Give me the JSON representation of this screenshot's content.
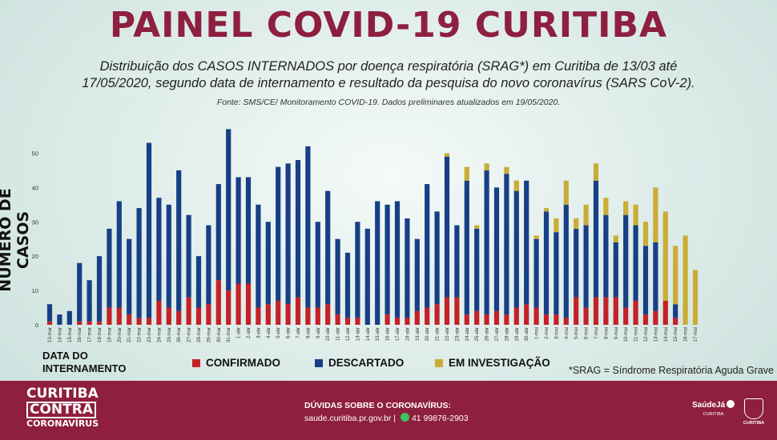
{
  "header": {
    "title": "PAINEL COVID-19 CURITIBA",
    "subtitle_line1": "Distribuição dos CASOS INTERNADOS por doença respiratória (SRAG*) em Curitiba de 13/03 até",
    "subtitle_line2": "17/05/2020, segundo data de internamento e resultado da pesquisa do novo coronavírus (SARS CoV-2).",
    "source": "Fonte: SMS/CE/ Monitoramento COVID-19. Dados preliminares atualizados em 19/05/2020."
  },
  "axis": {
    "ylabel": "NÚMERO DE CASOS",
    "xcaption_line1": "DATA DO",
    "xcaption_line2": "INTERNAMENTO"
  },
  "legend": {
    "confirmado": "CONFIRMADO",
    "descartado": "DESCARTADO",
    "investigacao": "EM INVESTIGAÇÃO"
  },
  "footnote": "*SRAG = Síndrome Respiratória Aguda Grave",
  "footer": {
    "brand_line1": "CURITIBA",
    "brand_line2": "CONTRA",
    "brand_line3": "CORONAVÍRUS",
    "doubts_title": "DÚVIDAS SOBRE O CORONAVÍRUS:",
    "site": "saude.curitiba.pr.gov.br",
    "separator": "|",
    "phone": "41 99876-2903",
    "logo1_name": "SaúdeJá",
    "logo1_sub": "CURITIBA",
    "logo2_name": "CURITIBA"
  },
  "colors": {
    "confirmado": "#c42127",
    "descartado": "#173f86",
    "investigacao": "#c9ad34",
    "brand": "#8e1f3f"
  },
  "chart_data": {
    "type": "bar",
    "stacked": true,
    "ylim": [
      0,
      55
    ],
    "yticks": [
      0,
      10,
      20,
      30,
      40,
      50
    ],
    "categories": [
      "13-mar",
      "14-mar",
      "15-mar",
      "16-mar",
      "17-mar",
      "18-mar",
      "19-mar",
      "20-mar",
      "21-mar",
      "22-mar",
      "23-mar",
      "24-mar",
      "25-mar",
      "26-mar",
      "27-mar",
      "28-mar",
      "29-mar",
      "30-mar",
      "31-mar",
      "1-abr",
      "2-abr",
      "3-abr",
      "4-abr",
      "5-abr",
      "6-abr",
      "7-abr",
      "8-abr",
      "9-abr",
      "10-abr",
      "11-abr",
      "12-abr",
      "13-abr",
      "14-abr",
      "15-abr",
      "16-abr",
      "17-abr",
      "18-abr",
      "19-abr",
      "20-abr",
      "21-abr",
      "22-abr",
      "23-abr",
      "24-abr",
      "25-abr",
      "26-abr",
      "27-abr",
      "28-abr",
      "29-abr",
      "30-abr",
      "1-mai",
      "2-mai",
      "3-mai",
      "4-mai",
      "5-mai",
      "6-mai",
      "7-mai",
      "8-mai",
      "9-mai",
      "10-mai",
      "11-mai",
      "12-mai",
      "13-mai",
      "14-mai",
      "15-mai",
      "16-mai",
      "17-mai"
    ],
    "series": [
      {
        "name": "CONFIRMADO",
        "values": [
          1,
          0,
          0,
          1,
          1,
          1,
          5,
          5,
          3,
          2,
          2,
          7,
          5,
          4,
          8,
          5,
          6,
          13,
          10,
          12,
          12,
          5,
          6,
          7,
          6,
          8,
          5,
          5,
          6,
          3,
          2,
          2,
          0,
          0,
          3,
          2,
          2,
          4,
          5,
          6,
          8,
          8,
          3,
          4,
          3,
          4,
          3,
          5,
          6,
          5,
          3,
          3,
          2,
          8,
          5,
          8,
          8,
          8,
          5,
          7,
          3,
          4,
          7,
          2,
          0,
          0
        ]
      },
      {
        "name": "DESCARTADO",
        "values": [
          5,
          3,
          4,
          17,
          12,
          19,
          23,
          31,
          22,
          32,
          51,
          30,
          30,
          41,
          24,
          15,
          23,
          28,
          47,
          31,
          31,
          30,
          24,
          39,
          41,
          40,
          47,
          25,
          33,
          22,
          19,
          28,
          28,
          36,
          32,
          34,
          29,
          21,
          36,
          27,
          41,
          21,
          39,
          24,
          42,
          36,
          41,
          34,
          36,
          20,
          30,
          24,
          33,
          20,
          24,
          34,
          24,
          16,
          27,
          22,
          20,
          20,
          0,
          4,
          0,
          0
        ]
      },
      {
        "name": "EM INVESTIGAÇÃO",
        "values": [
          0,
          0,
          0,
          0,
          0,
          0,
          0,
          0,
          0,
          0,
          0,
          0,
          0,
          0,
          0,
          0,
          0,
          0,
          0,
          0,
          0,
          0,
          0,
          0,
          0,
          0,
          0,
          0,
          0,
          0,
          0,
          0,
          0,
          0,
          0,
          0,
          0,
          0,
          0,
          0,
          1,
          0,
          4,
          1,
          2,
          0,
          2,
          3,
          0,
          1,
          1,
          4,
          7,
          3,
          6,
          5,
          5,
          2,
          4,
          6,
          7,
          16,
          26,
          17,
          26,
          16
        ]
      }
    ],
    "title": "Distribuição dos CASOS INTERNADOS por doença respiratória (SRAG*) em Curitiba",
    "xlabel": "DATA DO INTERNAMENTO",
    "ylabel": "NÚMERO DE CASOS"
  }
}
